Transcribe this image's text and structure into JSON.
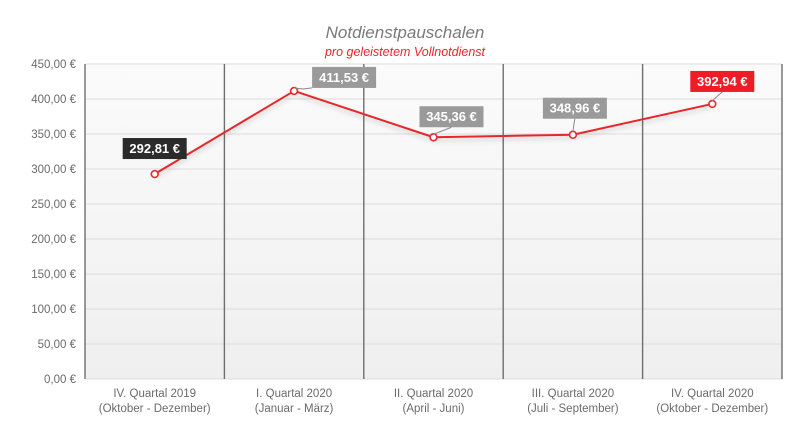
{
  "chart_data": {
    "type": "line",
    "title": "Notdienstpauschalen",
    "subtitle": "pro geleistetem Vollnotdienst",
    "categories": [
      {
        "line1": "IV. Quartal 2019",
        "line2": "(Oktober - Dezember)"
      },
      {
        "line1": "I. Quartal 2020",
        "line2": "(Januar - März)"
      },
      {
        "line1": "II. Quartal 2020",
        "line2": "(April - Juni)"
      },
      {
        "line1": "III. Quartal 2020",
        "line2": "(Juli - September)"
      },
      {
        "line1": "IV. Quartal 2020",
        "line2": "(Oktober - Dezember)"
      }
    ],
    "values": [
      292.81,
      411.53,
      345.36,
      348.96,
      392.94
    ],
    "data_labels": [
      "292,81 €",
      "411,53 €",
      "345,36 €",
      "348,96 €",
      "392,94 €"
    ],
    "label_colors": [
      "#2b2b2b",
      "#9a9a9a",
      "#9a9a9a",
      "#9a9a9a",
      "#ee1c25"
    ],
    "line_color": "#e8262b",
    "ylim": [
      0,
      450
    ],
    "yticks": [
      {
        "value": 0,
        "label": "0,00 €"
      },
      {
        "value": 50,
        "label": "50,00 €"
      },
      {
        "value": 100,
        "label": "100,00 €"
      },
      {
        "value": 150,
        "label": "150,00 €"
      },
      {
        "value": 200,
        "label": "200,00 €"
      },
      {
        "value": 250,
        "label": "250,00 €"
      },
      {
        "value": 300,
        "label": "300,00 €"
      },
      {
        "value": 350,
        "label": "350,00 €"
      },
      {
        "value": 400,
        "label": "400,00 €"
      },
      {
        "value": 450,
        "label": "450,00 €"
      }
    ],
    "grid": true,
    "legend": "none"
  }
}
